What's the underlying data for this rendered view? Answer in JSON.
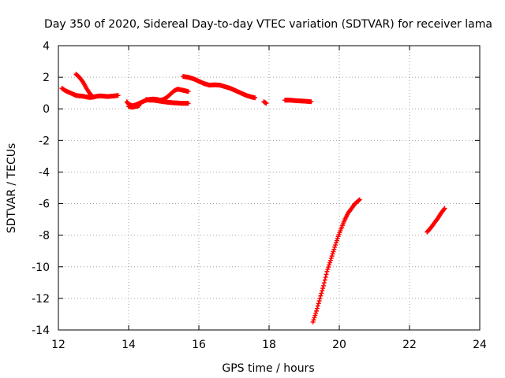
{
  "chart_data": {
    "type": "scatter",
    "title": "Day 350 of 2020, Sidereal Day-to-day VTEC variation (SDTVAR) for receiver lama",
    "xlabel": "GPS time / hours",
    "ylabel": "SDTVAR / TECUs",
    "xlim": [
      12,
      24
    ],
    "ylim": [
      -14,
      4
    ],
    "x_ticks": [
      "12",
      "14",
      "16",
      "18",
      "20",
      "22",
      "24"
    ],
    "y_ticks": [
      "4",
      "2",
      "0",
      "-2",
      "-4",
      "-6",
      "-8",
      "-10",
      "-12",
      "-14"
    ],
    "grid": true,
    "marker": "plus",
    "color": "#ff0000",
    "series": [
      {
        "segments": [
          [
            [
              12.1,
              1.3
            ],
            [
              12.2,
              1.15
            ],
            [
              12.3,
              1.05
            ],
            [
              12.4,
              0.95
            ],
            [
              12.5,
              0.85
            ],
            [
              12.6,
              0.82
            ],
            [
              12.7,
              0.8
            ],
            [
              12.8,
              0.75
            ],
            [
              12.9,
              0.72
            ],
            [
              13.0,
              0.75
            ],
            [
              13.1,
              0.8
            ],
            [
              13.2,
              0.82
            ],
            [
              13.3,
              0.8
            ],
            [
              13.4,
              0.78
            ],
            [
              13.5,
              0.8
            ],
            [
              13.6,
              0.82
            ],
            [
              13.7,
              0.85
            ]
          ],
          [
            [
              12.5,
              2.2
            ],
            [
              12.6,
              2.0
            ],
            [
              12.7,
              1.7
            ],
            [
              12.8,
              1.3
            ],
            [
              12.9,
              0.95
            ],
            [
              13.0,
              0.75
            ]
          ],
          [
            [
              13.95,
              0.45
            ],
            [
              14.0,
              0.3
            ],
            [
              14.1,
              0.2
            ],
            [
              14.2,
              0.25
            ],
            [
              14.3,
              0.35
            ],
            [
              14.4,
              0.45
            ],
            [
              14.5,
              0.55
            ],
            [
              14.6,
              0.6
            ],
            [
              14.7,
              0.62
            ],
            [
              14.8,
              0.6
            ],
            [
              14.9,
              0.55
            ],
            [
              15.0,
              0.6
            ],
            [
              15.1,
              0.75
            ],
            [
              15.2,
              0.95
            ],
            [
              15.3,
              1.15
            ],
            [
              15.4,
              1.25
            ],
            [
              15.5,
              1.2
            ],
            [
              15.6,
              1.15
            ],
            [
              15.7,
              1.1
            ]
          ],
          [
            [
              14.0,
              0.15
            ],
            [
              14.1,
              0.1
            ],
            [
              14.2,
              0.15
            ],
            [
              14.3,
              0.2
            ]
          ],
          [
            [
              14.5,
              0.6
            ],
            [
              14.6,
              0.55
            ],
            [
              14.7,
              0.55
            ],
            [
              14.8,
              0.52
            ],
            [
              14.9,
              0.48
            ],
            [
              15.0,
              0.45
            ],
            [
              15.1,
              0.42
            ],
            [
              15.2,
              0.4
            ],
            [
              15.3,
              0.38
            ],
            [
              15.4,
              0.37
            ],
            [
              15.5,
              0.35
            ],
            [
              15.6,
              0.35
            ],
            [
              15.7,
              0.35
            ]
          ],
          [
            [
              15.55,
              2.05
            ],
            [
              15.7,
              2.0
            ],
            [
              15.85,
              1.9
            ],
            [
              16.0,
              1.75
            ],
            [
              16.15,
              1.6
            ],
            [
              16.3,
              1.5
            ],
            [
              16.45,
              1.52
            ],
            [
              16.6,
              1.5
            ],
            [
              16.75,
              1.4
            ],
            [
              16.9,
              1.3
            ],
            [
              17.05,
              1.15
            ],
            [
              17.2,
              1.0
            ],
            [
              17.35,
              0.85
            ],
            [
              17.5,
              0.75
            ],
            [
              17.6,
              0.7
            ]
          ],
          [
            [
              17.85,
              0.45
            ],
            [
              17.92,
              0.35
            ]
          ],
          [
            [
              18.45,
              0.55
            ],
            [
              18.6,
              0.55
            ],
            [
              18.75,
              0.52
            ],
            [
              18.9,
              0.5
            ],
            [
              19.05,
              0.48
            ],
            [
              19.2,
              0.45
            ]
          ],
          [
            [
              19.25,
              -13.5
            ],
            [
              19.35,
              -12.8
            ],
            [
              19.45,
              -12.0
            ],
            [
              19.55,
              -11.2
            ],
            [
              19.65,
              -10.3
            ],
            [
              19.75,
              -9.6
            ],
            [
              19.85,
              -8.9
            ],
            [
              19.95,
              -8.2
            ],
            [
              20.05,
              -7.6
            ],
            [
              20.15,
              -7.05
            ],
            [
              20.25,
              -6.6
            ],
            [
              20.35,
              -6.3
            ],
            [
              20.45,
              -6.0
            ],
            [
              20.58,
              -5.75
            ]
          ],
          [
            [
              22.5,
              -7.8
            ],
            [
              22.6,
              -7.55
            ],
            [
              22.7,
              -7.25
            ],
            [
              22.8,
              -6.95
            ],
            [
              22.9,
              -6.6
            ],
            [
              23.0,
              -6.3
            ]
          ]
        ]
      }
    ]
  }
}
